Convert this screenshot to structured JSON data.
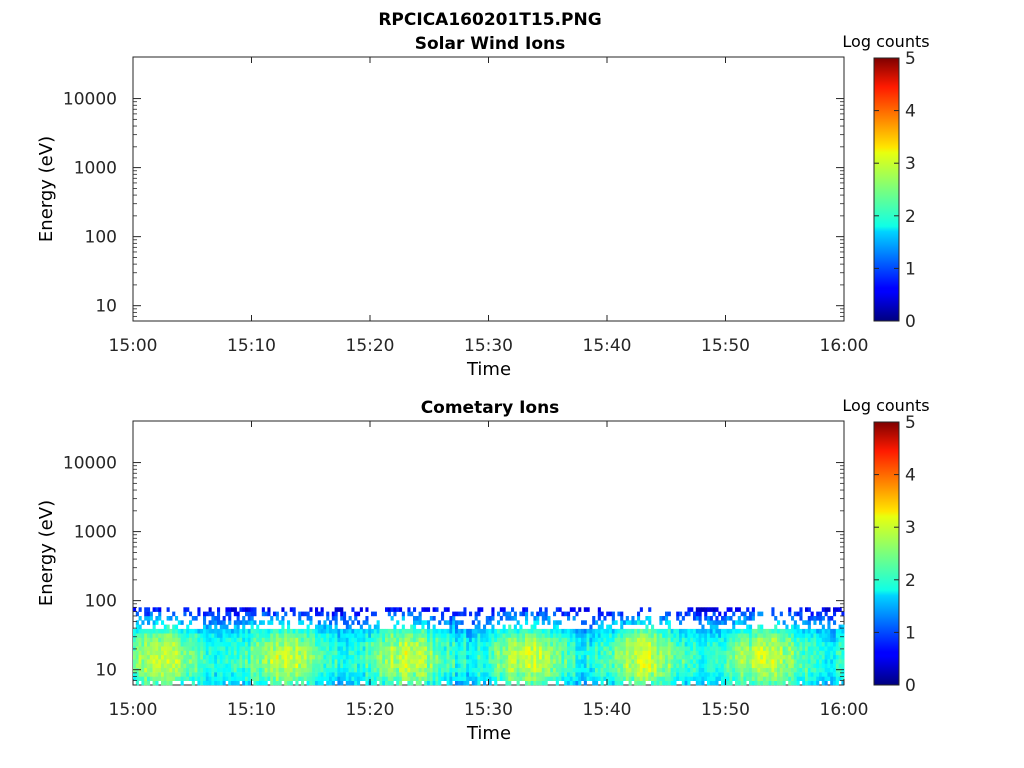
{
  "figure": {
    "title": "RPCICA160201T15.PNG"
  },
  "chart_data": [
    {
      "type": "heatmap",
      "title": "Solar Wind Ions",
      "xlabel": "Time",
      "ylabel": "Energy (eV)",
      "x_ticks": [
        "15:00",
        "15:10",
        "15:20",
        "15:30",
        "15:40",
        "15:50",
        "16:00"
      ],
      "xlim": [
        "15:00",
        "16:00"
      ],
      "y_ticks": [
        "10",
        "100",
        "1000",
        "10000"
      ],
      "ylim": [
        6,
        40000
      ],
      "yscale": "log",
      "colorbar": {
        "label": "Log counts",
        "range": [
          0,
          5
        ],
        "ticks": [
          "0",
          "1",
          "2",
          "3",
          "4",
          "5"
        ],
        "colormap": "jet"
      },
      "data": []
    },
    {
      "type": "heatmap",
      "title": "Cometary Ions",
      "xlabel": "Time",
      "ylabel": "Energy (eV)",
      "x_ticks": [
        "15:00",
        "15:10",
        "15:20",
        "15:30",
        "15:40",
        "15:50",
        "16:00"
      ],
      "xlim": [
        "15:00",
        "16:00"
      ],
      "y_ticks": [
        "10",
        "100",
        "1000",
        "10000"
      ],
      "ylim": [
        6,
        40000
      ],
      "yscale": "log",
      "colorbar": {
        "label": "Log counts",
        "range": [
          0,
          5
        ],
        "ticks": [
          "0",
          "1",
          "2",
          "3",
          "4",
          "5"
        ],
        "colormap": "jet"
      },
      "data": {
        "energy_range_eV": [
          6,
          80
        ],
        "peak_energy_eV": 15,
        "peak_log_counts": [
          2.5,
          3.2
        ],
        "edge_log_counts": [
          0.3,
          1.0
        ]
      }
    }
  ]
}
